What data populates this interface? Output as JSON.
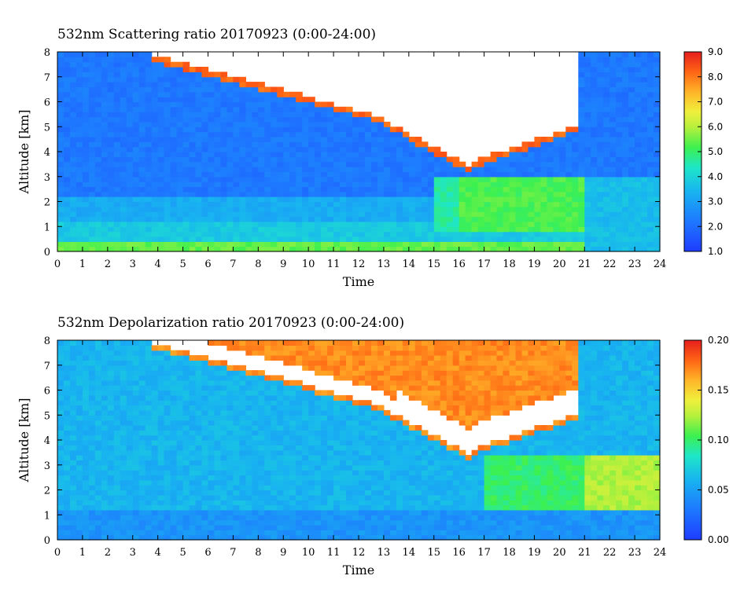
{
  "chart_data": [
    {
      "type": "heatmap",
      "title": "532nm Scattering ratio  20170923 (0:00-24:00)",
      "xlabel": "Time",
      "ylabel": "Altitude [km]",
      "xlim": [
        0,
        24
      ],
      "ylim": [
        0,
        8
      ],
      "x_ticks": [
        "0",
        "1",
        "2",
        "3",
        "4",
        "5",
        "6",
        "7",
        "8",
        "9",
        "10",
        "11",
        "12",
        "13",
        "14",
        "15",
        "16",
        "17",
        "18",
        "19",
        "20",
        "21",
        "22",
        "23",
        "24"
      ],
      "y_ticks": [
        "0",
        "1",
        "2",
        "3",
        "4",
        "5",
        "6",
        "7",
        "8"
      ],
      "colorbar": {
        "range": [
          1.0,
          9.0
        ],
        "ticks": [
          "1.0",
          "2.0",
          "3.0",
          "4.0",
          "5.0",
          "6.0",
          "7.0",
          "8.0",
          "9.0"
        ],
        "colormap": "rainbow"
      }
    },
    {
      "type": "heatmap",
      "title": "532nm Depolarization ratio  20170923 (0:00-24:00)",
      "xlabel": "Time",
      "ylabel": "Altitude [km]",
      "xlim": [
        0,
        24
      ],
      "ylim": [
        0,
        8
      ],
      "x_ticks": [
        "0",
        "1",
        "2",
        "3",
        "4",
        "5",
        "6",
        "7",
        "8",
        "9",
        "10",
        "11",
        "12",
        "13",
        "14",
        "15",
        "16",
        "17",
        "18",
        "19",
        "20",
        "21",
        "22",
        "23",
        "24"
      ],
      "y_ticks": [
        "0",
        "1",
        "2",
        "3",
        "4",
        "5",
        "6",
        "7",
        "8"
      ],
      "colorbar": {
        "range": [
          0.0,
          0.2
        ],
        "ticks": [
          "0.00",
          "0.05",
          "0.10",
          "0.15",
          "0.20"
        ],
        "colormap": "rainbow"
      }
    }
  ]
}
